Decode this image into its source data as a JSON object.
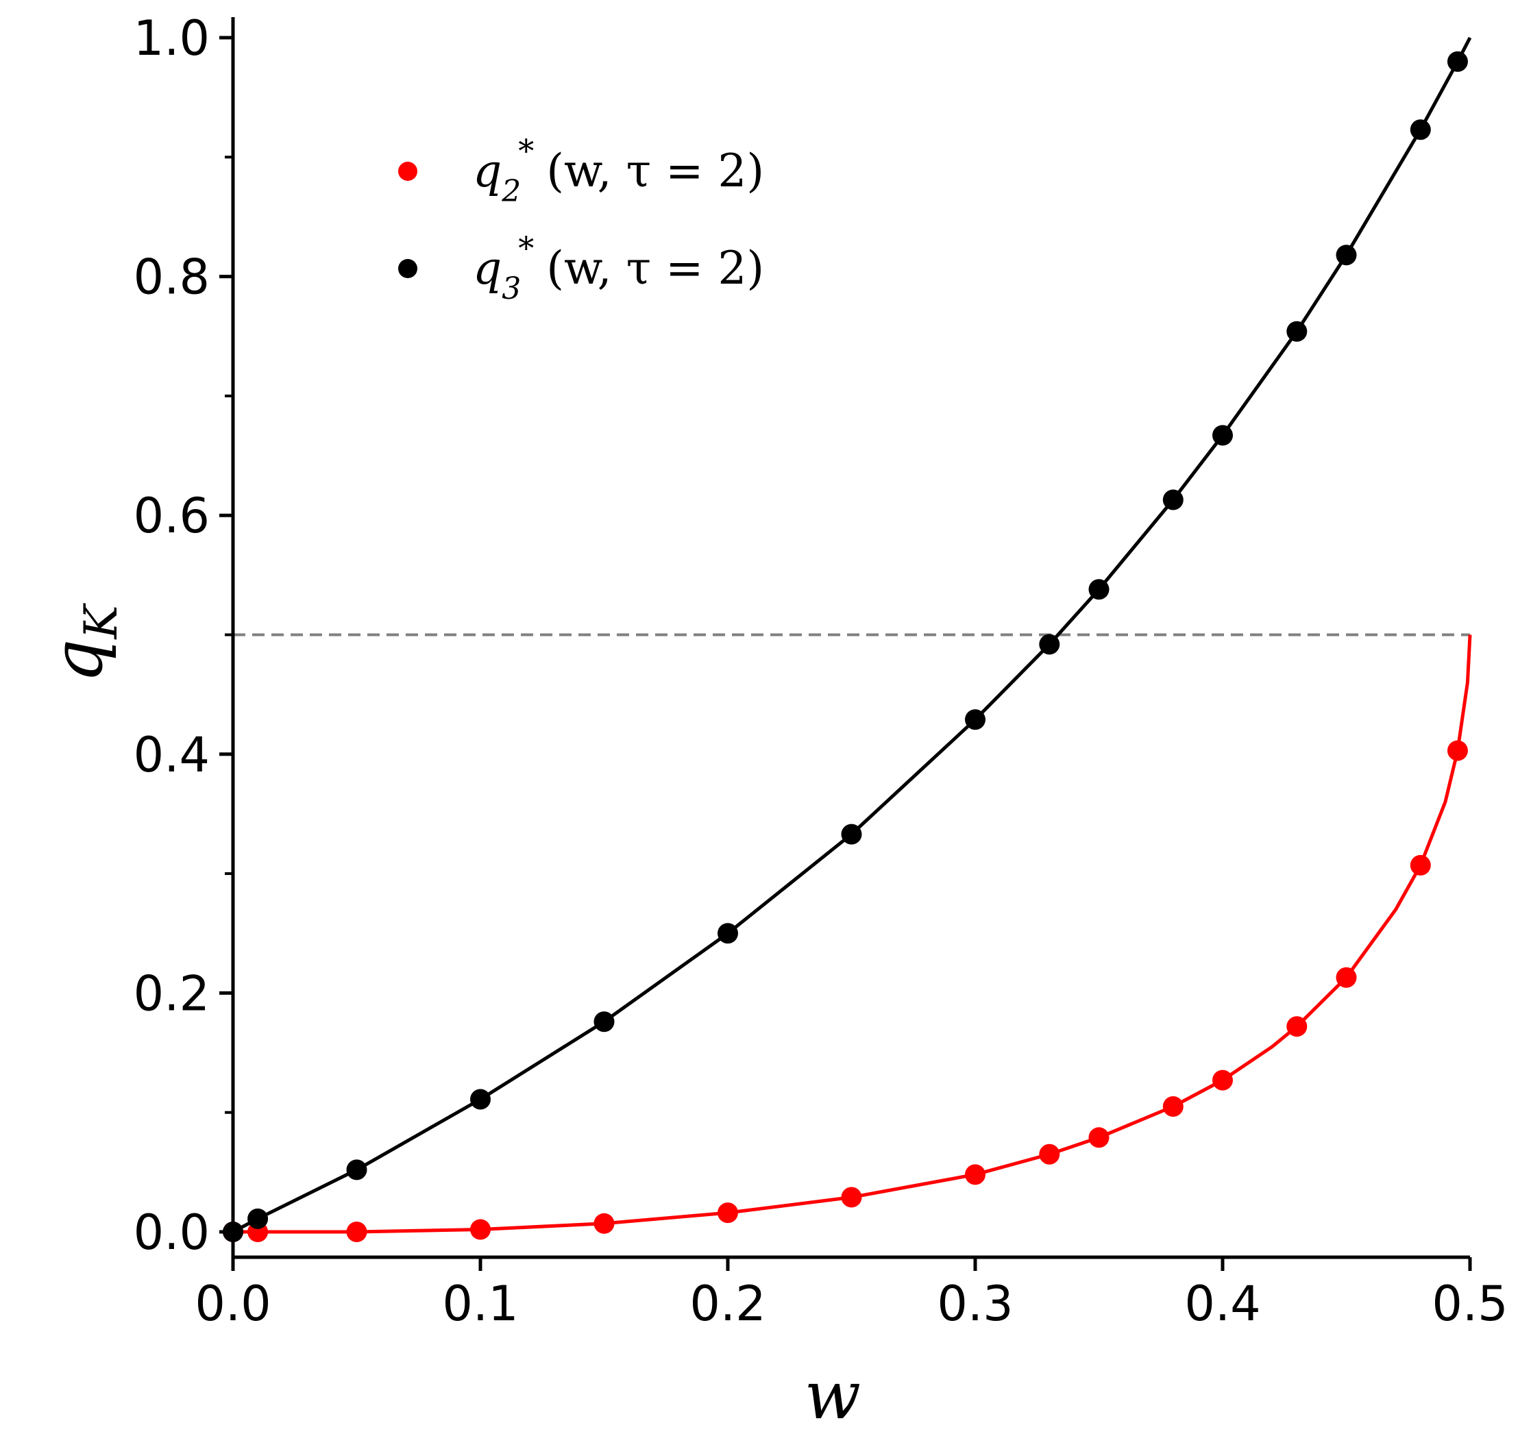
{
  "chart_data": {
    "type": "line",
    "xlabel": "w",
    "ylabel_base": "q",
    "ylabel_sub": "K",
    "xlim": [
      0,
      0.5
    ],
    "ylim": [
      -0.02,
      1.02
    ],
    "x_ticks": [
      0.0,
      0.1,
      0.2,
      0.3,
      0.4,
      0.5
    ],
    "x_tick_labels": [
      "0.0",
      "0.1",
      "0.2",
      "0.3",
      "0.4",
      "0.5"
    ],
    "y_ticks": [
      0.0,
      0.2,
      0.4,
      0.6,
      0.8,
      1.0
    ],
    "y_tick_labels": [
      "0.0",
      "0.2",
      "0.4",
      "0.6",
      "0.8",
      "1.0"
    ],
    "y_minor_ticks": [
      0.1,
      0.3,
      0.5,
      0.7,
      0.9
    ],
    "reference_line": {
      "y": 0.5,
      "style": "dashed",
      "color": "#808080"
    },
    "grid": false,
    "legend_position": "top-left",
    "series": [
      {
        "name": "q_2^* (w, τ = 2)",
        "legend_base": "q",
        "legend_sub": "2",
        "legend_sup": "*",
        "legend_args": "(w, τ = 2)",
        "color": "#ff0000",
        "points_x": [
          0.0,
          0.01,
          0.05,
          0.1,
          0.15,
          0.2,
          0.25,
          0.3,
          0.33,
          0.35,
          0.38,
          0.4,
          0.43,
          0.45,
          0.48,
          0.495
        ],
        "points_y": [
          0.0,
          0.0,
          0.0,
          0.002,
          0.007,
          0.016,
          0.029,
          0.048,
          0.065,
          0.079,
          0.105,
          0.127,
          0.172,
          0.213,
          0.307,
          0.403
        ],
        "curve_x": [
          0.0,
          0.05,
          0.1,
          0.15,
          0.2,
          0.25,
          0.3,
          0.33,
          0.35,
          0.38,
          0.4,
          0.42,
          0.43,
          0.45,
          0.47,
          0.48,
          0.49,
          0.495,
          0.499,
          0.5
        ],
        "curve_y": [
          0.0,
          0.0,
          0.002,
          0.007,
          0.016,
          0.029,
          0.048,
          0.065,
          0.079,
          0.105,
          0.127,
          0.155,
          0.172,
          0.213,
          0.27,
          0.307,
          0.36,
          0.403,
          0.46,
          0.5
        ]
      },
      {
        "name": "q_3^* (w, τ = 2)",
        "legend_base": "q",
        "legend_sub": "3",
        "legend_sup": "*",
        "legend_args": "(w, τ = 2)",
        "color": "#000000",
        "points_x": [
          0.0,
          0.01,
          0.05,
          0.1,
          0.15,
          0.2,
          0.25,
          0.3,
          0.33,
          0.35,
          0.38,
          0.4,
          0.43,
          0.45,
          0.48,
          0.495
        ],
        "points_y": [
          0.0,
          0.011,
          0.052,
          0.111,
          0.176,
          0.25,
          0.333,
          0.429,
          0.492,
          0.538,
          0.613,
          0.667,
          0.754,
          0.818,
          0.923,
          0.98
        ],
        "curve_x": [
          0.0,
          0.01,
          0.05,
          0.1,
          0.15,
          0.2,
          0.25,
          0.3,
          0.33,
          0.35,
          0.38,
          0.4,
          0.43,
          0.45,
          0.48,
          0.495,
          0.5
        ],
        "curve_y": [
          0.0,
          0.011,
          0.052,
          0.111,
          0.176,
          0.25,
          0.333,
          0.429,
          0.492,
          0.538,
          0.613,
          0.667,
          0.754,
          0.818,
          0.923,
          0.98,
          1.0
        ]
      }
    ]
  }
}
